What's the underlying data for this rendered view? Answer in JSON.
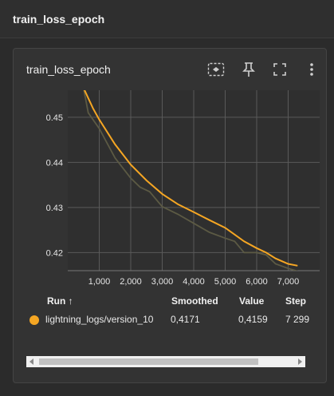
{
  "header": {
    "title": "train_loss_epoch"
  },
  "card": {
    "title": "train_loss_epoch",
    "tools": {
      "fit_icon": "fit-to-data-icon",
      "pin_icon": "pin-icon",
      "fullscreen_icon": "fullscreen-icon",
      "more_icon": "more-vert-icon"
    }
  },
  "chart_data": {
    "type": "line",
    "xlim": [
      0,
      8000
    ],
    "ylim": [
      0.416,
      0.456
    ],
    "x_ticks": [
      1000,
      2000,
      3000,
      4000,
      5000,
      6000,
      7000
    ],
    "x_tick_labels": [
      "1,000",
      "2,000",
      "3,000",
      "4,000",
      "5,000",
      "6,000",
      "7,000"
    ],
    "y_ticks": [
      0.42,
      0.43,
      0.44,
      0.45
    ],
    "y_tick_labels": [
      "0.42",
      "0.43",
      "0.44",
      "0.45"
    ],
    "grid": true,
    "series": [
      {
        "name": "",
        "role": "raw",
        "color": "#5c5a44",
        "points": [
          [
            500,
            0.4565
          ],
          [
            650,
            0.451
          ],
          [
            1000,
            0.4475
          ],
          [
            1500,
            0.441
          ],
          [
            2000,
            0.4365
          ],
          [
            2300,
            0.4345
          ],
          [
            2600,
            0.4335
          ],
          [
            3000,
            0.4302
          ],
          [
            3500,
            0.4285
          ],
          [
            4000,
            0.4265
          ],
          [
            4500,
            0.4245
          ],
          [
            5000,
            0.4232
          ],
          [
            5300,
            0.4225
          ],
          [
            5600,
            0.42
          ],
          [
            6000,
            0.42
          ],
          [
            6300,
            0.4195
          ],
          [
            6600,
            0.4175
          ],
          [
            7000,
            0.4165
          ],
          [
            7300,
            0.4159
          ]
        ]
      },
      {
        "name": "lightning_logs/version_10",
        "role": "smoothed",
        "color": "#f5a623",
        "points": [
          [
            500,
            0.4565
          ],
          [
            800,
            0.452
          ],
          [
            1000,
            0.4495
          ],
          [
            1500,
            0.444
          ],
          [
            2000,
            0.4395
          ],
          [
            2500,
            0.436
          ],
          [
            3000,
            0.433
          ],
          [
            3500,
            0.4307
          ],
          [
            4000,
            0.429
          ],
          [
            4500,
            0.4272
          ],
          [
            5000,
            0.4255
          ],
          [
            5300,
            0.424
          ],
          [
            5600,
            0.4225
          ],
          [
            6000,
            0.421
          ],
          [
            6300,
            0.42
          ],
          [
            6600,
            0.4187
          ],
          [
            7000,
            0.4175
          ],
          [
            7300,
            0.4171
          ]
        ]
      }
    ]
  },
  "table": {
    "headers": {
      "run": "Run ↑",
      "smoothed": "Smoothed",
      "value": "Value",
      "step": "Step"
    },
    "rows": [
      {
        "color": "#f5a623",
        "run": "lightning_logs/version_10",
        "smoothed": "0,4171",
        "value": "0,4159",
        "step": "7 299"
      }
    ]
  }
}
